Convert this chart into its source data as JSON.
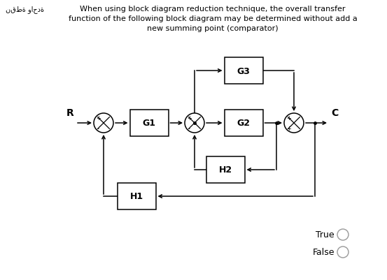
{
  "title_line1": "When using block diagram reduction technique, the overall transfer",
  "title_line2": "function of the following block diagram may be determined without add a",
  "title_line3": "new summing point (comparator)",
  "arabic_text": "نقطة واحدة",
  "background_color": "#ffffff",
  "text_color": "#000000",
  "fig_width": 5.53,
  "fig_height": 4.02,
  "dpi": 100
}
